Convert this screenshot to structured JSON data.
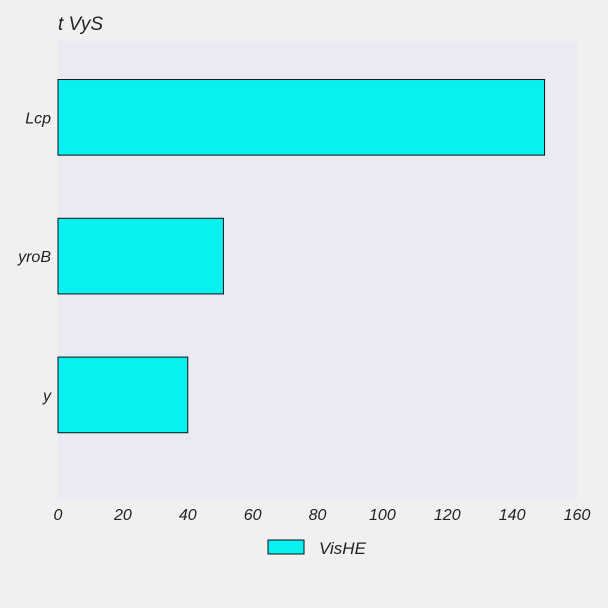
{
  "chart_data": {
    "type": "bar",
    "orientation": "horizontal",
    "title": "t VyS",
    "xlabel": "",
    "ylabel": "",
    "categories": [
      "Lcp",
      "yroB",
      "y"
    ],
    "series": [
      {
        "name": "VisHE",
        "values": [
          150,
          51,
          40
        ]
      }
    ],
    "xlim": [
      0,
      160
    ],
    "xticks": [
      0,
      20,
      40,
      60,
      80,
      100,
      120,
      140,
      160
    ],
    "grid": false,
    "legend": "bottom-center",
    "colors": {
      "bar": "#08f0ef",
      "bar_edge": "#111111",
      "plot_bg": "#eaeaf2",
      "figure_bg": "#f0f0f0"
    }
  }
}
